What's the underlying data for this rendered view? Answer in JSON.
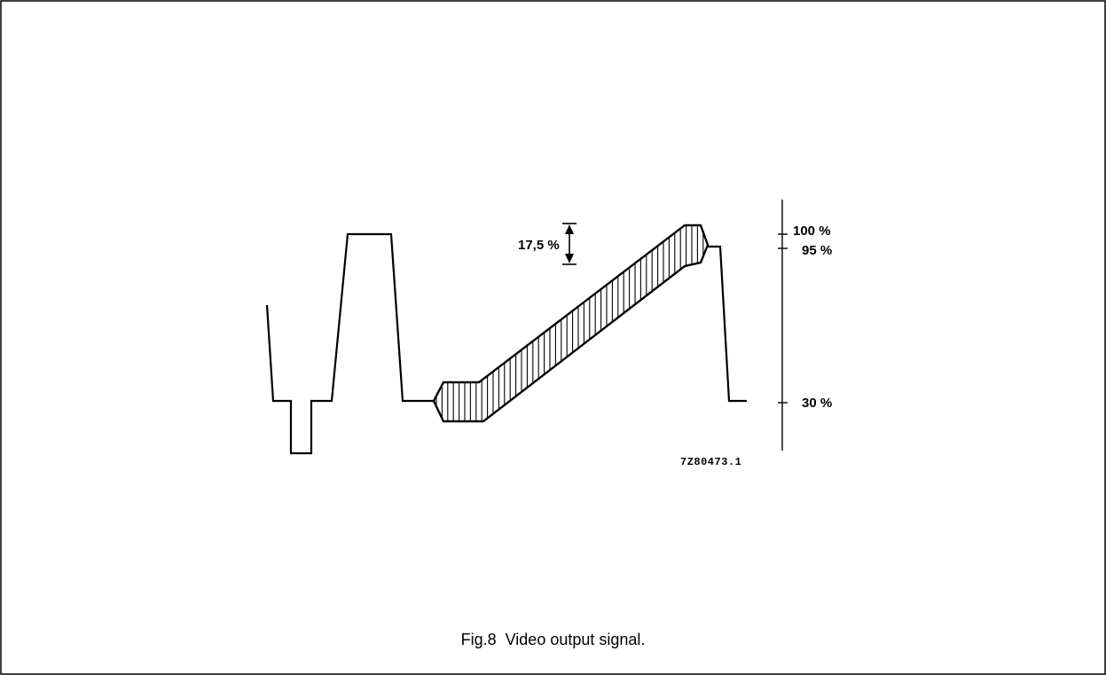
{
  "figure": {
    "caption": "Fig.8  Video output signal.",
    "code": "7Z80473.1",
    "amplitude_label": "17,5 %",
    "scale_labels": {
      "level_100": "100 %",
      "level_95": "95 %",
      "level_30": "30 %"
    }
  },
  "colors": {
    "border": "#000000",
    "ink": "#000000",
    "background": "#ffffff"
  }
}
